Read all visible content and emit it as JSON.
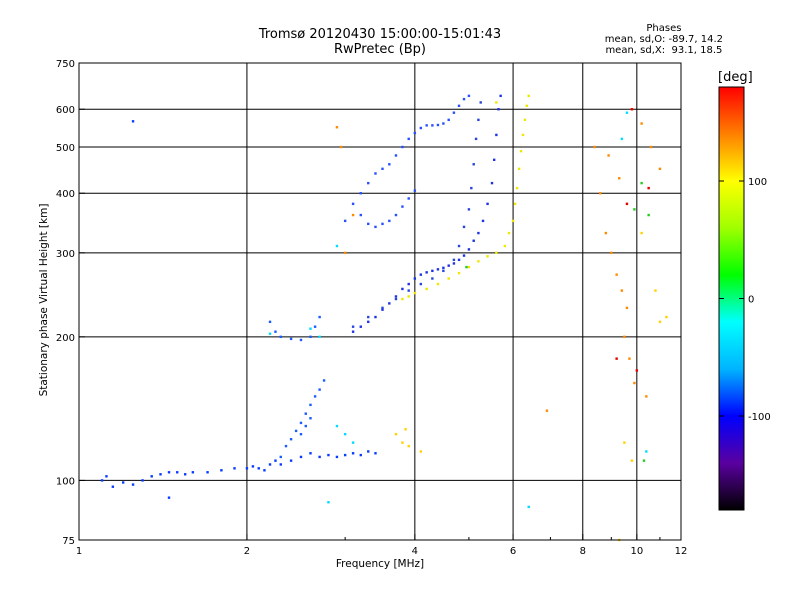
{
  "title": {
    "line1": "Tromsø 20120430 15:00:00-15:01:43",
    "line2": "RwPretec (Bp)"
  },
  "phase_stats": {
    "header": "Phases",
    "line_o": "mean, sd,O: -89.7, 14.2",
    "line_x": "mean, sd,X:  93.1, 18.5"
  },
  "colorbar": {
    "unit": "[deg]",
    "ticks": [
      "100",
      "0",
      "-100"
    ],
    "tick_values": [
      100,
      0,
      -100
    ],
    "range": [
      -180,
      180
    ],
    "stops": [
      "#000000",
      "#5a00a0",
      "#0000ff",
      "#00b4ff",
      "#00ffff",
      "#00ff00",
      "#a0ff00",
      "#ffff00",
      "#ff8000",
      "#ff0000"
    ]
  },
  "chart_data": {
    "type": "scatter",
    "title": "Tromsø 20120430 15:00:00-15:01:43",
    "subtitle": "RwPretec (Bp)",
    "xlabel": "Frequency [MHz]",
    "ylabel": "Stationary phase Virtual Height [km]",
    "x_scale": "log",
    "y_scale": "log",
    "xlim": [
      1,
      12
    ],
    "ylim": [
      75,
      750
    ],
    "x_ticks": [
      1,
      2,
      4,
      6,
      8,
      10,
      12
    ],
    "y_ticks": [
      75,
      100,
      200,
      300,
      400,
      500,
      600,
      750
    ],
    "grid": true,
    "series": [
      {
        "color": "#0a3cff",
        "phase": -95,
        "points": [
          [
            1.1,
            100
          ],
          [
            1.12,
            102
          ],
          [
            1.15,
            97
          ],
          [
            1.2,
            99
          ],
          [
            1.25,
            98
          ],
          [
            1.3,
            100
          ],
          [
            1.35,
            102
          ],
          [
            1.4,
            103
          ],
          [
            1.45,
            104
          ],
          [
            1.5,
            104
          ],
          [
            1.55,
            103
          ],
          [
            1.6,
            104
          ],
          [
            1.7,
            104
          ],
          [
            1.8,
            105
          ],
          [
            1.9,
            106
          ],
          [
            2.0,
            106
          ],
          [
            2.05,
            107
          ],
          [
            2.1,
            106
          ],
          [
            2.15,
            105
          ],
          [
            2.2,
            108
          ],
          [
            2.25,
            110
          ],
          [
            2.3,
            108
          ],
          [
            2.4,
            110
          ],
          [
            2.5,
            112
          ],
          [
            2.6,
            114
          ],
          [
            2.7,
            112
          ],
          [
            2.8,
            113
          ],
          [
            2.9,
            112
          ],
          [
            3.0,
            113
          ],
          [
            3.1,
            114
          ],
          [
            3.2,
            113
          ],
          [
            3.3,
            115
          ],
          [
            3.4,
            114
          ],
          [
            1.45,
            92
          ],
          [
            1.25,
            566
          ]
        ]
      },
      {
        "color": "#1a5cff",
        "phase": -80,
        "points": [
          [
            2.3,
            112
          ],
          [
            2.35,
            118
          ],
          [
            2.4,
            122
          ],
          [
            2.45,
            127
          ],
          [
            2.5,
            132
          ],
          [
            2.55,
            138
          ],
          [
            2.6,
            144
          ],
          [
            2.65,
            150
          ],
          [
            2.7,
            155
          ],
          [
            2.75,
            162
          ],
          [
            2.5,
            125
          ],
          [
            2.55,
            130
          ],
          [
            2.6,
            135
          ],
          [
            2.2,
            215
          ],
          [
            2.25,
            205
          ],
          [
            2.3,
            200
          ],
          [
            2.4,
            198
          ],
          [
            2.5,
            197
          ],
          [
            2.6,
            200
          ],
          [
            2.65,
            210
          ],
          [
            2.7,
            220
          ]
        ]
      },
      {
        "color": "#1e32e6",
        "phase": -100,
        "points": [
          [
            3.1,
            205
          ],
          [
            3.2,
            210
          ],
          [
            3.3,
            215
          ],
          [
            3.4,
            220
          ],
          [
            3.5,
            228
          ],
          [
            3.6,
            235
          ],
          [
            3.7,
            243
          ],
          [
            3.8,
            252
          ],
          [
            3.9,
            258
          ],
          [
            4.0,
            265
          ],
          [
            4.1,
            270
          ],
          [
            4.2,
            273
          ],
          [
            4.3,
            275
          ],
          [
            4.4,
            277
          ],
          [
            4.5,
            279
          ],
          [
            4.6,
            282
          ],
          [
            4.7,
            285
          ],
          [
            4.8,
            290
          ],
          [
            4.9,
            296
          ],
          [
            5.0,
            305
          ],
          [
            5.1,
            318
          ],
          [
            5.2,
            330
          ],
          [
            5.3,
            350
          ],
          [
            5.4,
            380
          ],
          [
            5.5,
            420
          ],
          [
            5.55,
            470
          ],
          [
            5.6,
            530
          ],
          [
            5.65,
            600
          ],
          [
            5.7,
            640
          ]
        ]
      },
      {
        "color": "#2846dc",
        "phase": -90,
        "points": [
          [
            3.1,
            210
          ],
          [
            3.3,
            220
          ],
          [
            3.5,
            230
          ],
          [
            3.7,
            240
          ],
          [
            3.9,
            250
          ],
          [
            4.1,
            258
          ],
          [
            4.3,
            265
          ],
          [
            4.5,
            275
          ],
          [
            4.7,
            290
          ],
          [
            4.8,
            310
          ],
          [
            4.9,
            340
          ],
          [
            5.0,
            370
          ],
          [
            5.05,
            410
          ],
          [
            5.1,
            460
          ],
          [
            5.15,
            520
          ],
          [
            5.2,
            570
          ],
          [
            5.25,
            620
          ]
        ]
      },
      {
        "color": "#2850ff",
        "phase": -85,
        "points": [
          [
            3.6,
            460
          ],
          [
            3.7,
            480
          ],
          [
            3.8,
            500
          ],
          [
            3.9,
            520
          ],
          [
            4.0,
            535
          ],
          [
            4.1,
            548
          ],
          [
            4.2,
            555
          ],
          [
            4.3,
            555
          ],
          [
            4.4,
            556
          ],
          [
            4.5,
            560
          ],
          [
            4.6,
            570
          ],
          [
            4.7,
            590
          ],
          [
            4.8,
            610
          ],
          [
            4.9,
            630
          ],
          [
            5.0,
            640
          ],
          [
            3.0,
            350
          ],
          [
            3.1,
            380
          ],
          [
            3.2,
            400
          ],
          [
            3.3,
            420
          ],
          [
            3.4,
            440
          ],
          [
            3.5,
            450
          ],
          [
            3.2,
            360
          ],
          [
            3.3,
            345
          ],
          [
            3.4,
            340
          ],
          [
            3.5,
            345
          ],
          [
            3.6,
            350
          ],
          [
            3.7,
            360
          ],
          [
            3.8,
            375
          ],
          [
            3.9,
            390
          ],
          [
            4.0,
            405
          ]
        ]
      },
      {
        "color": "#f0e600",
        "phase": 95,
        "points": [
          [
            3.8,
            240
          ],
          [
            3.9,
            243
          ],
          [
            4.0,
            247
          ],
          [
            4.2,
            252
          ],
          [
            4.4,
            258
          ],
          [
            4.6,
            265
          ],
          [
            4.8,
            272
          ],
          [
            5.0,
            280
          ],
          [
            5.2,
            288
          ],
          [
            5.4,
            295
          ],
          [
            5.6,
            300
          ],
          [
            5.8,
            310
          ],
          [
            5.9,
            330
          ],
          [
            6.0,
            350
          ],
          [
            6.05,
            380
          ],
          [
            6.1,
            410
          ],
          [
            6.15,
            450
          ],
          [
            6.2,
            490
          ],
          [
            6.25,
            530
          ],
          [
            6.3,
            570
          ],
          [
            6.35,
            610
          ],
          [
            6.4,
            640
          ],
          [
            5.6,
            620
          ]
        ]
      },
      {
        "color": "#ff8a00",
        "phase": 140,
        "points": [
          [
            2.9,
            550
          ],
          [
            2.95,
            500
          ],
          [
            3.1,
            360
          ],
          [
            3.0,
            300
          ],
          [
            6.9,
            140
          ],
          [
            8.4,
            500
          ],
          [
            8.6,
            400
          ],
          [
            8.8,
            330
          ],
          [
            9.0,
            300
          ],
          [
            9.2,
            270
          ],
          [
            9.4,
            250
          ],
          [
            9.6,
            230
          ],
          [
            9.8,
            600
          ],
          [
            10.2,
            560
          ],
          [
            10.6,
            500
          ],
          [
            11.0,
            450
          ],
          [
            9.5,
            200
          ],
          [
            9.7,
            180
          ],
          [
            9.9,
            160
          ],
          [
            10.4,
            150
          ],
          [
            9.3,
            430
          ],
          [
            8.9,
            480
          ]
        ]
      },
      {
        "color": "#ffd200",
        "phase": 110,
        "points": [
          [
            3.7,
            125
          ],
          [
            3.8,
            120
          ],
          [
            3.85,
            128
          ],
          [
            3.9,
            118
          ],
          [
            4.1,
            115
          ],
          [
            9.3,
            75
          ],
          [
            9.5,
            120
          ],
          [
            9.8,
            110
          ],
          [
            10.2,
            330
          ],
          [
            10.8,
            250
          ],
          [
            11.0,
            215
          ],
          [
            11.3,
            220
          ]
        ]
      },
      {
        "color": "#00dcff",
        "phase": -40,
        "points": [
          [
            2.9,
            130
          ],
          [
            3.0,
            125
          ],
          [
            3.1,
            120
          ],
          [
            2.8,
            90
          ],
          [
            2.9,
            310
          ],
          [
            2.7,
            200
          ],
          [
            2.6,
            208
          ],
          [
            2.2,
            203
          ],
          [
            9.4,
            520
          ],
          [
            9.6,
            590
          ],
          [
            10.4,
            115
          ],
          [
            6.4,
            88
          ]
        ]
      },
      {
        "color": "#22cc22",
        "phase": 40,
        "points": [
          [
            9.9,
            370
          ],
          [
            10.2,
            420
          ],
          [
            10.5,
            360
          ],
          [
            4.95,
            280
          ],
          [
            10.3,
            110
          ]
        ]
      },
      {
        "color": "#e60000",
        "phase": 175,
        "points": [
          [
            9.2,
            180
          ],
          [
            9.8,
            600
          ],
          [
            10.0,
            170
          ],
          [
            10.5,
            410
          ],
          [
            9.6,
            380
          ]
        ]
      }
    ]
  }
}
